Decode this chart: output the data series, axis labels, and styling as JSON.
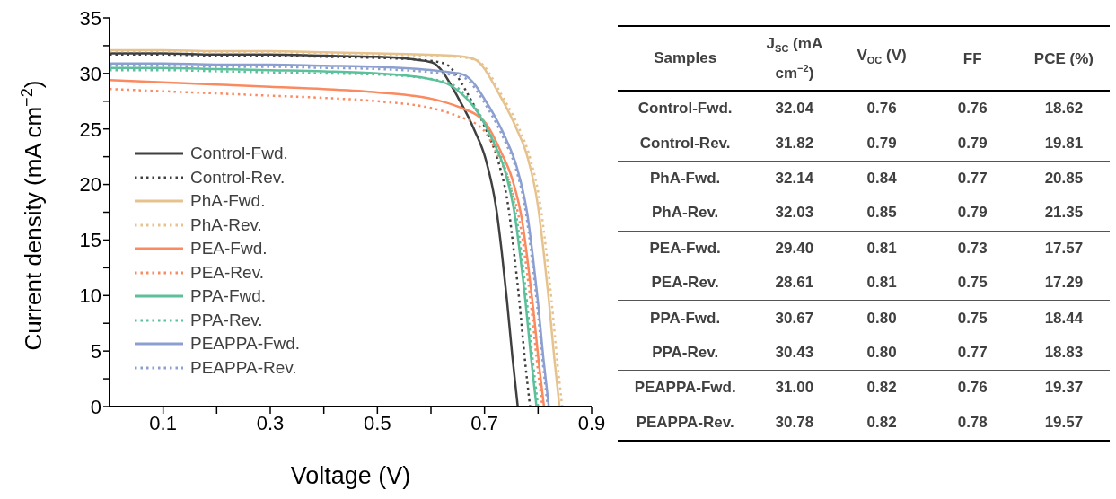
{
  "chart_data": [
    {
      "type": "line",
      "xlabel": "Voltage (V)",
      "ylabel": "Current density (mA cm$^{−2}$)",
      "xlim": [
        0,
        0.9
      ],
      "ylim": [
        0,
        35
      ],
      "xticks": [
        {
          "value": 0.1,
          "label": "0.1"
        },
        {
          "value": 0.2,
          "label": null
        },
        {
          "value": 0.3,
          "label": "0.3"
        },
        {
          "value": 0.4,
          "label": null
        },
        {
          "value": 0.5,
          "label": "0.5"
        },
        {
          "value": 0.6,
          "label": null
        },
        {
          "value": 0.7,
          "label": "0.7"
        },
        {
          "value": 0.8,
          "label": null
        },
        {
          "value": 0.9,
          "label": "0.9"
        }
      ],
      "yticks": [
        0,
        {
          "value": 2.5,
          "label": null
        },
        5,
        {
          "value": 7.5,
          "label": null
        },
        10,
        {
          "value": 12.5,
          "label": null
        },
        15,
        {
          "value": 17.5,
          "label": null
        },
        20,
        {
          "value": 22.5,
          "label": null
        },
        25,
        {
          "value": 27.5,
          "label": null
        },
        30,
        {
          "value": 32.5,
          "label": null
        },
        35
      ],
      "legend": "left",
      "marker": "none",
      "series": [
        {
          "name": "Control-Fwd.",
          "color": "#404040",
          "line_style": "solid",
          "x": [
            0,
            0.1,
            0.2,
            0.3,
            0.4,
            0.5,
            0.562,
            0.602,
            0.652,
            0.682,
            0.702,
            0.722,
            0.732,
            0.742,
            0.752,
            0.762
          ],
          "values": [
            31.8,
            31.8,
            31.7,
            31.7,
            31.6,
            31.5,
            31.3,
            31.0,
            27.7,
            24.8,
            22.3,
            17.8,
            14.0,
            9.5,
            4.5,
            0
          ]
        },
        {
          "name": "Control-Rev.",
          "color": "#404040",
          "line_style": "dotted",
          "x": [
            0,
            0.1,
            0.2,
            0.3,
            0.4,
            0.5,
            0.585,
            0.625,
            0.675,
            0.705,
            0.725,
            0.745,
            0.755,
            0.765,
            0.775,
            0.785
          ],
          "values": [
            31.7,
            31.7,
            31.6,
            31.6,
            31.5,
            31.4,
            31.2,
            30.9,
            27.6,
            24.7,
            22.2,
            17.8,
            13.9,
            9.5,
            4.4,
            0
          ]
        },
        {
          "name": "PhA-Fwd.",
          "color": "#e6c38e",
          "line_style": "solid",
          "x": [
            0,
            0.1,
            0.2,
            0.3,
            0.4,
            0.5,
            0.64,
            0.68,
            0.73,
            0.76,
            0.78,
            0.8,
            0.81,
            0.82,
            0.83,
            0.84
          ],
          "values": [
            32.1,
            32.1,
            32.0,
            32.0,
            31.9,
            31.8,
            31.6,
            31.3,
            27.9,
            25.0,
            22.5,
            18.0,
            14.1,
            9.6,
            4.5,
            0
          ]
        },
        {
          "name": "PhA-Rev.",
          "color": "#e6c38e",
          "line_style": "dotted",
          "x": [
            0,
            0.1,
            0.2,
            0.3,
            0.4,
            0.5,
            0.645,
            0.685,
            0.735,
            0.765,
            0.785,
            0.805,
            0.815,
            0.825,
            0.835,
            0.845
          ],
          "values": [
            32.0,
            32.0,
            31.9,
            31.9,
            31.8,
            31.7,
            31.5,
            31.2,
            27.8,
            25.0,
            22.4,
            17.9,
            14.1,
            9.6,
            4.5,
            0
          ]
        },
        {
          "name": "PEA-Fwd.",
          "color": "#fa8a60",
          "line_style": "solid",
          "x": [
            0,
            0.1,
            0.2,
            0.3,
            0.4,
            0.5,
            0.611,
            0.651,
            0.701,
            0.731,
            0.751,
            0.771,
            0.781,
            0.791,
            0.801,
            0.811
          ],
          "values": [
            29.4,
            29.2,
            29.0,
            28.8,
            28.6,
            28.3,
            27.6,
            27.0,
            25.6,
            22.9,
            20.6,
            16.5,
            12.9,
            8.8,
            4.1,
            0
          ]
        },
        {
          "name": "PEA-Rev.",
          "color": "#fa8a60",
          "line_style": "dotted",
          "x": [
            0,
            0.1,
            0.2,
            0.3,
            0.4,
            0.5,
            0.608,
            0.648,
            0.698,
            0.728,
            0.748,
            0.768,
            0.778,
            0.788,
            0.798,
            0.808
          ],
          "values": [
            28.6,
            28.4,
            28.2,
            28.0,
            27.8,
            27.5,
            26.8,
            26.2,
            24.9,
            22.3,
            20.0,
            16.0,
            12.6,
            8.6,
            4.0,
            0
          ]
        },
        {
          "name": "PPA-Fwd.",
          "color": "#5cc09a",
          "line_style": "solid",
          "x": [
            0,
            0.1,
            0.2,
            0.3,
            0.4,
            0.5,
            0.597,
            0.637,
            0.687,
            0.717,
            0.737,
            0.757,
            0.767,
            0.777,
            0.787,
            0.797
          ],
          "values": [
            30.5,
            30.5,
            30.4,
            30.3,
            30.2,
            30.0,
            29.5,
            28.9,
            26.5,
            23.8,
            21.4,
            17.1,
            13.4,
            9.2,
            4.3,
            0
          ]
        },
        {
          "name": "PPA-Rev.",
          "color": "#5cc09a",
          "line_style": "dotted",
          "x": [
            0,
            0.1,
            0.2,
            0.3,
            0.4,
            0.5,
            0.6,
            0.64,
            0.69,
            0.72,
            0.74,
            0.76,
            0.77,
            0.78,
            0.79,
            0.8
          ],
          "values": [
            30.3,
            30.3,
            30.2,
            30.1,
            30.0,
            29.9,
            29.5,
            29.0,
            26.4,
            23.6,
            21.2,
            17.0,
            13.3,
            9.1,
            4.2,
            0
          ]
        },
        {
          "name": "PEAPPA-Fwd.",
          "color": "#8c9fd0",
          "line_style": "solid",
          "x": [
            0,
            0.1,
            0.2,
            0.3,
            0.4,
            0.5,
            0.62,
            0.66,
            0.71,
            0.74,
            0.76,
            0.78,
            0.79,
            0.8,
            0.81,
            0.82
          ],
          "values": [
            30.9,
            30.9,
            30.8,
            30.8,
            30.7,
            30.6,
            30.2,
            29.9,
            26.9,
            24.1,
            21.6,
            17.3,
            13.6,
            9.3,
            4.3,
            0
          ]
        },
        {
          "name": "PEAPPA-Rev.",
          "color": "#8c9fd0",
          "line_style": "dotted",
          "x": [
            0,
            0.1,
            0.2,
            0.3,
            0.4,
            0.5,
            0.618,
            0.658,
            0.708,
            0.738,
            0.758,
            0.778,
            0.788,
            0.798,
            0.808,
            0.818
          ],
          "values": [
            30.7,
            30.7,
            30.6,
            30.6,
            30.5,
            30.4,
            30.0,
            29.7,
            26.7,
            23.9,
            21.5,
            17.2,
            13.5,
            9.2,
            4.3,
            0
          ]
        }
      ]
    },
    {
      "type": "other",
      "xlabel": "Samples",
      "categories": [
        "Control-Fwd.",
        "Control-Rev.",
        "PhA-Fwd.",
        "PhA-Rev.",
        "PEA-Fwd.",
        "PEA-Rev.",
        "PPA-Fwd.",
        "PPA-Rev.",
        "PEAPPA-Fwd.",
        "PEAPPA-Rev."
      ],
      "series": [
        {
          "name": "J$_{SC}$ (mA cm$^{−2}$)",
          "values": [
            32.04,
            31.82,
            32.14,
            32.03,
            29.4,
            28.61,
            30.67,
            30.43,
            31.0,
            30.78
          ],
          "value_labels": [
            "32.04",
            "31.82",
            "32.14",
            "32.03",
            "29.40",
            "28.61",
            "30.67",
            "30.43",
            "31.00",
            "30.78"
          ]
        },
        {
          "name": "V$_{OC}$ (V)",
          "values": [
            0.76,
            0.79,
            0.84,
            0.85,
            0.81,
            0.81,
            0.8,
            0.8,
            0.82,
            0.82
          ],
          "value_labels": [
            "0.76",
            "0.79",
            "0.84",
            "0.85",
            "0.81",
            "0.81",
            "0.80",
            "0.80",
            "0.82",
            "0.82"
          ]
        },
        {
          "name": "FF",
          "values": [
            0.76,
            0.79,
            0.77,
            0.79,
            0.73,
            0.75,
            0.75,
            0.77,
            0.76,
            0.78
          ],
          "value_labels": [
            "0.76",
            "0.79",
            "0.77",
            "0.79",
            "0.73",
            "0.75",
            "0.75",
            "0.77",
            "0.76",
            "0.78"
          ]
        },
        {
          "name": "PCE (%)",
          "values": [
            18.62,
            19.81,
            20.85,
            21.35,
            17.57,
            17.29,
            18.44,
            18.83,
            19.37,
            19.57
          ],
          "value_labels": [
            "18.62",
            "19.81",
            "20.85",
            "21.35",
            "17.57",
            "17.29",
            "18.44",
            "18.83",
            "19.37",
            "19.57"
          ]
        }
      ]
    }
  ]
}
